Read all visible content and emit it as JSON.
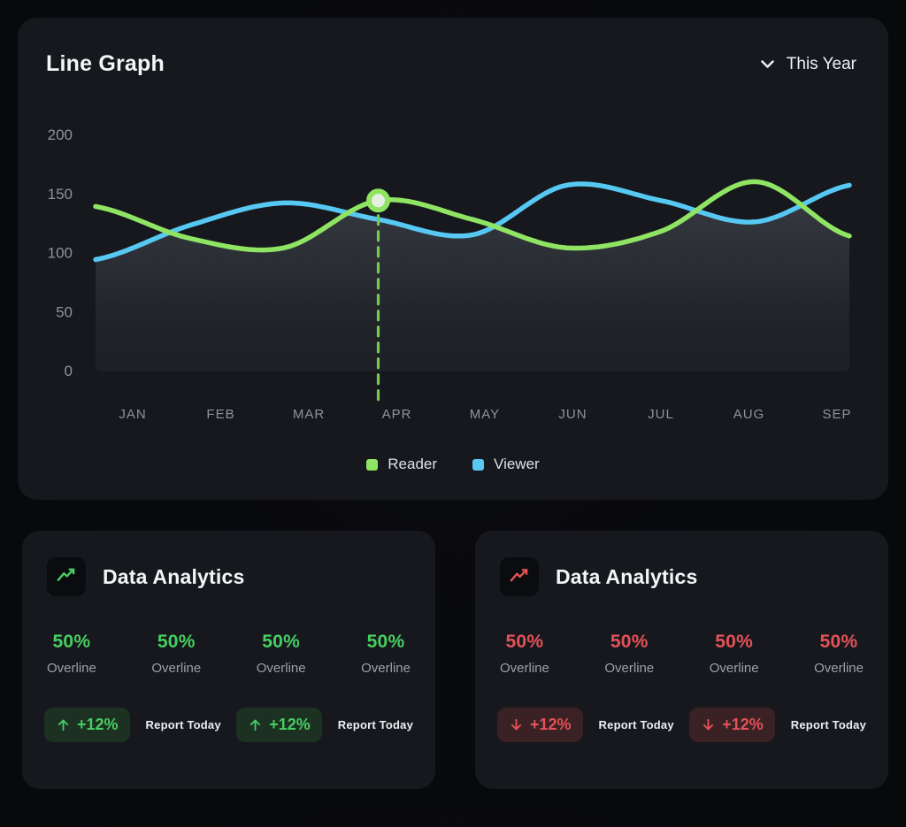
{
  "line_card": {
    "title": "Line Graph",
    "period_selector": {
      "label": "This Year",
      "icon": "chevron-down-icon"
    },
    "chart_data": {
      "type": "line",
      "x": [
        "JAN",
        "FEB",
        "MAR",
        "APR",
        "MAY",
        "JUN",
        "JUL",
        "AUG",
        "SEP"
      ],
      "series": [
        {
          "name": "Reader",
          "color": "#8fe563",
          "values": [
            139,
            112,
            104,
            144,
            128,
            104,
            118,
            160,
            114
          ]
        },
        {
          "name": "Viewer",
          "color": "#56c8f2",
          "values": [
            94,
            123,
            142,
            128,
            115,
            157,
            144,
            126,
            157
          ]
        }
      ],
      "ylim": [
        0,
        200
      ],
      "yticks": [
        0,
        50,
        100,
        150,
        200
      ],
      "grid": false,
      "legend_position": "bottom",
      "highlight": {
        "series": "Reader",
        "x": "APR",
        "x_index": 3,
        "value": 144,
        "marker_color": "#8fe563",
        "dash_color": "#74ca4e"
      },
      "area_fill": "gray-gradient-under-lower-envelope"
    },
    "legend": [
      {
        "name": "Reader",
        "color": "#8fe563"
      },
      {
        "name": "Viewer",
        "color": "#56c8f2"
      }
    ]
  },
  "analytics_cards": [
    {
      "title": "Data Analytics",
      "trend": "up",
      "accent": "#46cf60",
      "icon": "trend-up-icon",
      "stats": [
        {
          "value": "50%",
          "label": "Overline"
        },
        {
          "value": "50%",
          "label": "Overline"
        },
        {
          "value": "50%",
          "label": "Overline"
        },
        {
          "value": "50%",
          "label": "Overline"
        }
      ],
      "badges": [
        {
          "arrow": "up",
          "delta": "+12%",
          "caption": "Report Today"
        },
        {
          "arrow": "up",
          "delta": "+12%",
          "caption": "Report Today"
        }
      ]
    },
    {
      "title": "Data Analytics",
      "trend": "down",
      "accent": "#e45257",
      "icon": "trend-down-icon",
      "stats": [
        {
          "value": "50%",
          "label": "Overline"
        },
        {
          "value": "50%",
          "label": "Overline"
        },
        {
          "value": "50%",
          "label": "Overline"
        },
        {
          "value": "50%",
          "label": "Overline"
        }
      ],
      "badges": [
        {
          "arrow": "down",
          "delta": "+12%",
          "caption": "Report Today"
        },
        {
          "arrow": "down",
          "delta": "+12%",
          "caption": "Report Today"
        }
      ]
    }
  ]
}
